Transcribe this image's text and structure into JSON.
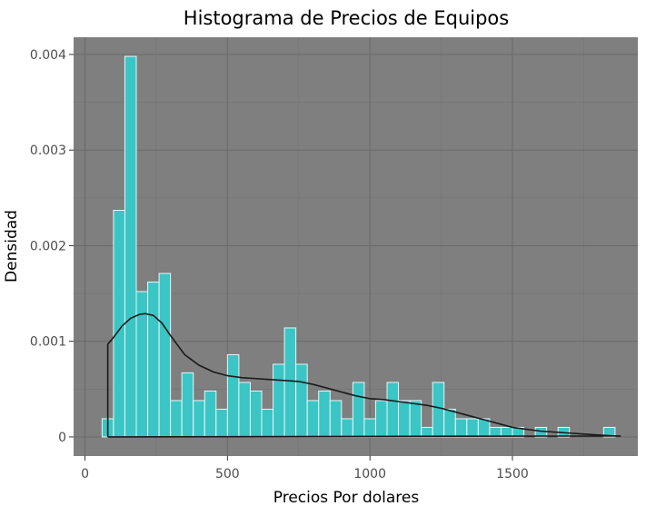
{
  "chart_data": {
    "type": "bar",
    "title": "Histograma de Precios de Equipos",
    "xlabel": "Precios Por dolares",
    "ylabel": "Densidad",
    "xlim": [
      -40,
      1940
    ],
    "ylim": [
      -0.0002,
      0.00418
    ],
    "x_ticks": [
      0,
      500,
      1000,
      1500
    ],
    "x_tick_labels": [
      "0",
      "500",
      "1000",
      "1500"
    ],
    "y_ticks": [
      0,
      0.001,
      0.002,
      0.003,
      0.004
    ],
    "y_tick_labels": [
      "0",
      "0.001",
      "0.002",
      "0.003",
      "0.004"
    ],
    "grid": true,
    "legend": "none",
    "colors": {
      "panel": "#7f7f7f",
      "bar_fill": "#3cc5c5",
      "bar_edge": "#e6f7f7",
      "density_line": "#1a1a1a",
      "grid": "#6a6a6a"
    },
    "bin_width": 40,
    "bins_start": 60,
    "density": [
      0.00019,
      0.00237,
      0.00398,
      0.00152,
      0.00162,
      0.00171,
      0.00038,
      0.00067,
      0.00038,
      0.00048,
      0.00029,
      0.00086,
      0.00057,
      0.00048,
      0.00029,
      0.00076,
      0.00114,
      0.00076,
      0.00038,
      0.00048,
      0.00038,
      0.00019,
      0.00057,
      0.00019,
      0.00038,
      0.00057,
      0.00038,
      0.00038,
      0.0001,
      0.00057,
      0.00029,
      0.00019,
      0.00019,
      0.00019,
      0.0001,
      0.0001,
      0.0001,
      0.0,
      0.0001,
      0.0,
      0.0001,
      0.0,
      0.0,
      0.0,
      0.0001
    ],
    "kde": {
      "x": [
        80,
        80,
        100,
        130,
        160,
        190,
        210,
        240,
        270,
        300,
        350,
        400,
        450,
        500,
        550,
        600,
        650,
        700,
        750,
        800,
        850,
        900,
        950,
        1000,
        1050,
        1100,
        1150,
        1200,
        1250,
        1300,
        1350,
        1400,
        1450,
        1500,
        1550,
        1600,
        1650,
        1700,
        1750,
        1800,
        1860,
        1880,
        80
      ],
      "y": [
        0.0,
        0.00097,
        0.00104,
        0.00116,
        0.00124,
        0.00128,
        0.00129,
        0.00127,
        0.00119,
        0.00106,
        0.00086,
        0.00075,
        0.00068,
        0.00064,
        0.00062,
        0.00061,
        0.0006,
        0.00059,
        0.00058,
        0.00055,
        0.00051,
        0.00047,
        0.00043,
        0.0004,
        0.00039,
        0.00037,
        0.00035,
        0.00033,
        0.0003,
        0.00026,
        0.00022,
        0.00018,
        0.00014,
        0.0001,
        8e-05,
        6e-05,
        5e-05,
        4e-05,
        3e-05,
        2e-05,
        1e-05,
        1e-05,
        0.0
      ]
    }
  }
}
